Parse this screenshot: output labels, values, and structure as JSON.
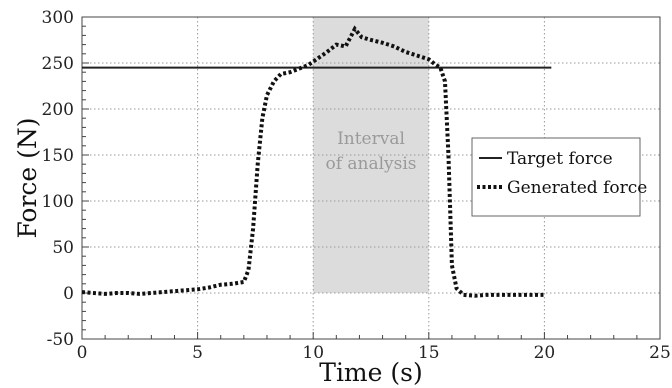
{
  "chart_data": {
    "type": "line",
    "title": "",
    "xlabel": "Time (s)",
    "ylabel": "Force (N)",
    "xlim": [
      0,
      25
    ],
    "ylim": [
      -50,
      300
    ],
    "xticks": [
      0,
      5,
      10,
      15,
      20,
      25
    ],
    "yticks": [
      -50,
      0,
      50,
      100,
      150,
      200,
      250,
      300
    ],
    "grid": true,
    "legend": {
      "position": "right",
      "entries": [
        "Target force",
        "Generated force"
      ]
    },
    "highlight_band": {
      "x0": 10,
      "x1": 15,
      "label_lines": [
        "Interval",
        "of analysis"
      ],
      "color": "#dcdcdc"
    },
    "series": [
      {
        "name": "Target force",
        "style": "solid",
        "color": "#222222",
        "x": [
          0,
          20.3
        ],
        "y": [
          245,
          245
        ]
      },
      {
        "name": "Generated force",
        "style": "dotted",
        "color": "#111111",
        "x": [
          0,
          0.5,
          1,
          1.5,
          2,
          2.5,
          3,
          3.5,
          4,
          4.5,
          5,
          5.5,
          6,
          6.5,
          7,
          7.2,
          7.4,
          7.6,
          7.8,
          8,
          8.3,
          8.6,
          9,
          9.4,
          9.8,
          10.2,
          10.6,
          11,
          11.4,
          11.8,
          12.1,
          12.5,
          13,
          13.5,
          14,
          14.5,
          15,
          15.3,
          15.5,
          15.7,
          15.85,
          16,
          16.2,
          16.5,
          17,
          17.5,
          18,
          19,
          20
        ],
        "y": [
          1,
          0,
          -1,
          0,
          0,
          -1,
          0,
          1,
          2,
          3,
          4,
          6,
          9,
          10,
          12,
          25,
          70,
          140,
          190,
          215,
          230,
          238,
          240,
          244,
          248,
          255,
          262,
          270,
          268,
          287,
          278,
          275,
          272,
          268,
          262,
          258,
          254,
          248,
          245,
          230,
          150,
          30,
          5,
          -2,
          -3,
          -2,
          -2,
          -2,
          -2
        ]
      }
    ]
  }
}
